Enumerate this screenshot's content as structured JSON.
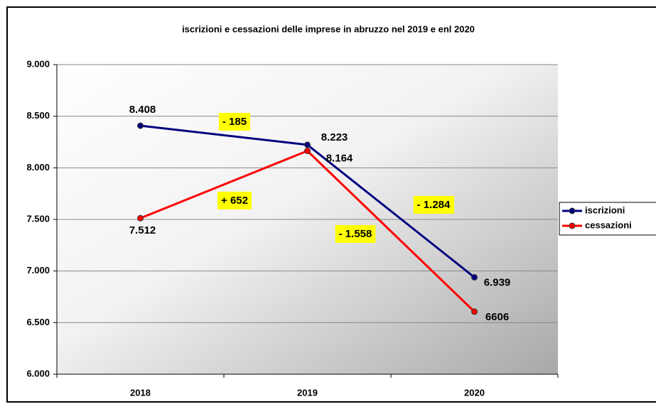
{
  "chart_data": {
    "type": "line",
    "title": "iscrizioni e cessazioni delle imprese in abruzzo nel 2019 e enl 2020",
    "categories": [
      "2018",
      "2019",
      "2020"
    ],
    "series": [
      {
        "name": "iscrizioni",
        "color": "#000080",
        "values": [
          8408,
          8223,
          6939
        ],
        "value_labels": [
          "8.408",
          "8.223",
          "6.939"
        ]
      },
      {
        "name": "cessazioni",
        "color": "#ff0000",
        "values": [
          7512,
          8164,
          6606
        ],
        "value_labels": [
          "7.512",
          "8.164",
          "6606"
        ]
      }
    ],
    "ylim": [
      6000,
      9000
    ],
    "yticks": [
      {
        "value": 6000,
        "label": "6.000"
      },
      {
        "value": 6500,
        "label": "6.500"
      },
      {
        "value": 7000,
        "label": "7.000"
      },
      {
        "value": 7500,
        "label": "7.500"
      },
      {
        "value": 8000,
        "label": "8.000"
      },
      {
        "value": 8500,
        "label": "8.500"
      },
      {
        "value": 9000,
        "label": "9.000"
      }
    ],
    "grid": true,
    "legend": "right",
    "annotations": [
      "- 185",
      "+ 652",
      "- 1.284",
      "- 1.558"
    ]
  }
}
